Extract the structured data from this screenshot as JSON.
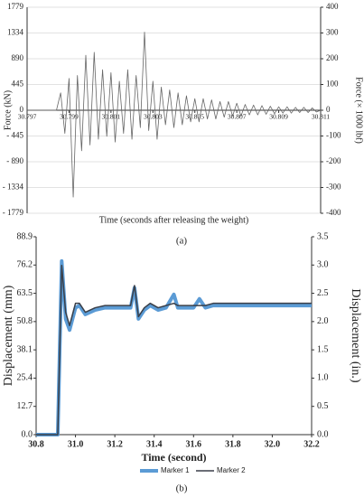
{
  "chart_data": [
    {
      "type": "line",
      "caption": "(a)",
      "x_label": "Time (seconds after releasing the weight)",
      "y_label": "Force (kN)",
      "y2_label": "Force (× 1000 lbf)",
      "color": "#666666",
      "grid": true,
      "x": [
        30.797,
        30.7972,
        30.7974,
        30.7976,
        30.7978,
        30.798,
        30.7982,
        30.7984,
        30.7986,
        30.7988,
        30.799,
        30.7992,
        30.7994,
        30.7996,
        30.7998,
        30.8,
        30.8002,
        30.8004,
        30.8006,
        30.8008,
        30.801,
        30.8012,
        30.8014,
        30.8016,
        30.8018,
        30.802,
        30.8022,
        30.8024,
        30.8026,
        30.8028,
        30.803,
        30.8032,
        30.8034,
        30.8036,
        30.8038,
        30.804,
        30.8042,
        30.8044,
        30.8046,
        30.8048,
        30.805,
        30.8052,
        30.8054,
        30.8056,
        30.8058,
        30.806,
        30.8062,
        30.8064,
        30.8066,
        30.8068,
        30.807,
        30.8072,
        30.8074,
        30.8076,
        30.8078,
        30.808,
        30.8082,
        30.8084,
        30.8086,
        30.8088,
        30.809,
        30.8092,
        30.8094,
        30.8096,
        30.8098,
        30.81,
        30.8102,
        30.8104,
        30.8106,
        30.8108,
        30.811
      ],
      "values": [
        0,
        0,
        0,
        0,
        0,
        0,
        0,
        0,
        300,
        -400,
        550,
        -1500,
        600,
        -700,
        950,
        -600,
        1000,
        -500,
        700,
        -450,
        650,
        -550,
        500,
        -400,
        700,
        -500,
        600,
        -300,
        1350,
        -350,
        500,
        -500,
        400,
        -250,
        350,
        -300,
        300,
        -250,
        250,
        -200,
        200,
        -200,
        200,
        -150,
        180,
        -150,
        150,
        -120,
        150,
        -100,
        120,
        -100,
        100,
        -80,
        90,
        -80,
        80,
        -70,
        70,
        -60,
        60,
        -50,
        60,
        -50,
        50,
        -40,
        50,
        -40,
        40,
        -30,
        0
      ],
      "xlim": [
        30.797,
        30.811
      ],
      "xticks": [
        30.797,
        30.799,
        30.801,
        30.803,
        30.805,
        30.807,
        30.809,
        30.811
      ],
      "ylim": [
        -1779,
        1779
      ],
      "yticks": [
        1779,
        1334,
        890,
        445,
        0,
        {
          "value": -445,
          "label": "- 445"
        },
        {
          "value": -890,
          "label": "- 890"
        },
        {
          "value": -1334,
          "label": "- 1334"
        },
        {
          "value": -1779,
          "label": "- 1779"
        }
      ],
      "y2lim": [
        -400,
        400
      ],
      "y2ticks": [
        400,
        300,
        200,
        100,
        0,
        -100,
        -200,
        -300,
        -400
      ]
    },
    {
      "type": "line",
      "caption": "(b)",
      "x_label": "Time (second)",
      "y_label": "Displacement (mm)",
      "y2_label": "Displacement (in.)",
      "grid": false,
      "legend": "bottom",
      "x": [
        30.8,
        30.9,
        30.91,
        30.93,
        30.95,
        30.97,
        31.0,
        31.02,
        31.05,
        31.1,
        31.15,
        31.2,
        31.28,
        31.3,
        31.32,
        31.35,
        31.38,
        31.42,
        31.46,
        31.5,
        31.52,
        31.56,
        31.6,
        31.63,
        31.66,
        31.7,
        31.75,
        31.8,
        31.9,
        32.0,
        32.1,
        32.2
      ],
      "series": [
        {
          "name": "Marker 1",
          "color": "#5b9bd5",
          "width": 4,
          "values": [
            0,
            0,
            0,
            78,
            52,
            47,
            57,
            58,
            54,
            56,
            57,
            57,
            57,
            66,
            52,
            56,
            58,
            56,
            57,
            63,
            57,
            57,
            57,
            61,
            57,
            58,
            58,
            58,
            58,
            58,
            58,
            58
          ]
        },
        {
          "name": "Marker 2",
          "color": "#3a3f48",
          "width": 1.5,
          "values": [
            0,
            0,
            0,
            76,
            55,
            49,
            59,
            59,
            55,
            57,
            58,
            58,
            58,
            67,
            53,
            57,
            59,
            57,
            58,
            59,
            58,
            58,
            58,
            58,
            58,
            59,
            59,
            59,
            59,
            59,
            59,
            59
          ]
        }
      ],
      "xlim": [
        30.8,
        32.2
      ],
      "xticks": [
        30.8,
        {
          "value": 31.0,
          "label": "31.0"
        },
        31.2,
        31.4,
        31.6,
        31.8,
        {
          "value": 32.0,
          "label": "32.0"
        },
        32.2
      ],
      "ylim": [
        0,
        88.9
      ],
      "yticks": [
        {
          "value": 0,
          "label": "0.0"
        },
        12.7,
        25.4,
        38.1,
        50.8,
        63.5,
        76.2,
        88.9
      ],
      "y2lim": [
        0,
        3.5
      ],
      "y2ticks": [
        {
          "value": 0,
          "label": "0.0"
        },
        0.5,
        {
          "value": 1,
          "label": "1.0"
        },
        1.5,
        {
          "value": 2,
          "label": "2.0"
        },
        2.5,
        {
          "value": 3,
          "label": "3.0"
        },
        3.5
      ]
    }
  ]
}
